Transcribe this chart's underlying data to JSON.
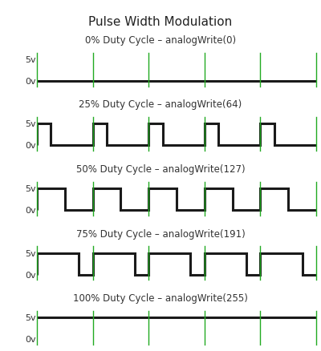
{
  "title": "Pulse Width Modulation",
  "background_color": "#ffffff",
  "signal_color": "#1a1a1a",
  "vline_color": "#22aa22",
  "panels": [
    {
      "label": "0% Duty Cycle – analogWrite(0)",
      "duty": 0.0
    },
    {
      "label": "25% Duty Cycle – analogWrite(64)",
      "duty": 0.25
    },
    {
      "label": "50% Duty Cycle – analogWrite(127)",
      "duty": 0.5
    },
    {
      "label": "75% Duty Cycle – analogWrite(191)",
      "duty": 0.75
    },
    {
      "label": "100% Duty Cycle – analogWrite(255)",
      "duty": 1.0
    }
  ],
  "num_cycles": 5,
  "signal_linewidth": 2.2,
  "vline_linewidth": 1.0,
  "title_fontsize": 11,
  "label_fontsize": 8.5,
  "ytick_fontsize": 8.0
}
